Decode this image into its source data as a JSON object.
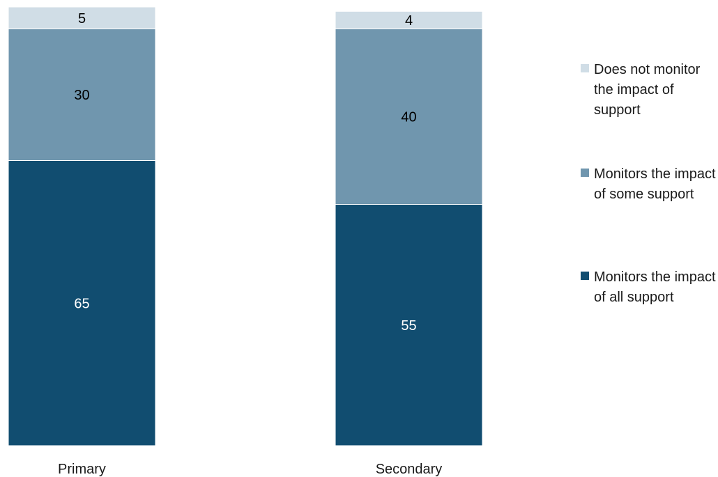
{
  "chart_data": {
    "type": "bar",
    "stacked": true,
    "categories": [
      "Primary",
      "Secondary"
    ],
    "series": [
      {
        "name": "Monitors the impact of all support",
        "values": [
          65,
          55
        ],
        "color": "#114d70",
        "label_color": "#ffffff"
      },
      {
        "name": "Monitors the impact of some support",
        "values": [
          30,
          40
        ],
        "color": "#7096ae",
        "label_color": "#000000"
      },
      {
        "name": "Does not monitor the impact of support",
        "values": [
          5,
          4
        ],
        "color": "#d0dde6",
        "label_color": "#000000"
      }
    ],
    "legend_order": [
      2,
      1,
      0
    ],
    "legend_position": "right",
    "ylim": [
      0,
      100
    ],
    "grid": false,
    "data_labels": true,
    "title": "",
    "xlabel": "",
    "ylabel": ""
  }
}
